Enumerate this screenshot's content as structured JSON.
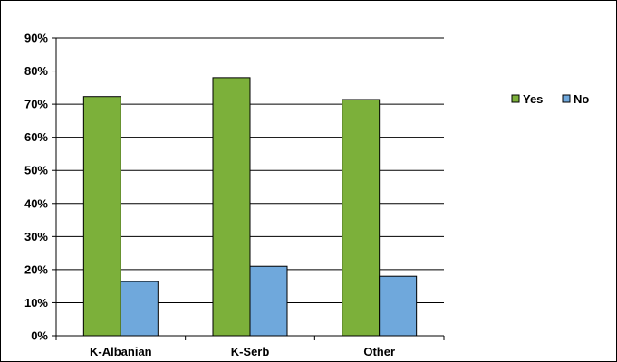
{
  "chart_data": {
    "type": "bar",
    "categories": [
      "K-Albanian",
      "K-Serb",
      "Other"
    ],
    "series": [
      {
        "name": "Yes",
        "values": [
          72.3,
          78.0,
          71.4
        ],
        "color": "#7cb03a"
      },
      {
        "name": "No",
        "values": [
          16.4,
          21.0,
          18.0
        ],
        "color": "#6fa8dc"
      }
    ],
    "ylim": [
      0,
      90
    ],
    "yticks": [
      0,
      10,
      20,
      30,
      40,
      50,
      60,
      70,
      80,
      90
    ],
    "ytick_labels": [
      "0%",
      "10%",
      "20%",
      "30%",
      "40%",
      "50%",
      "60%",
      "70%",
      "80%",
      "90%"
    ],
    "grid": true,
    "legend_position": "right",
    "title": "",
    "xlabel": "",
    "ylabel": ""
  }
}
